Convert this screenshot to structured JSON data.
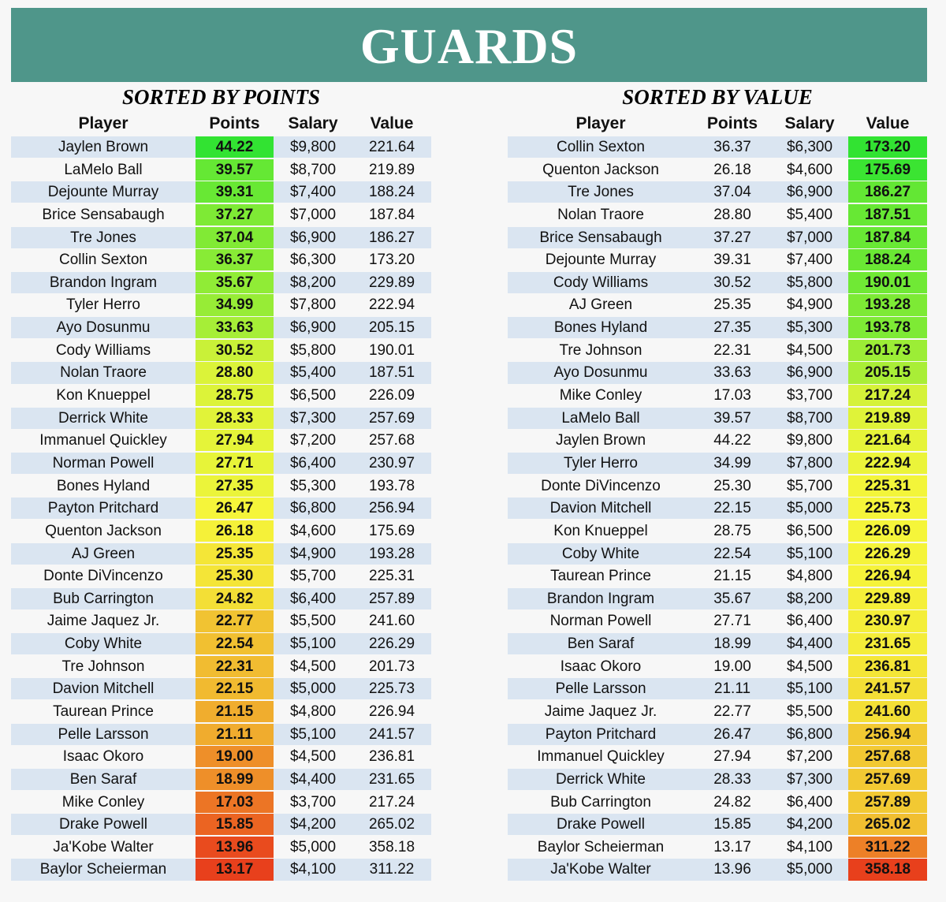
{
  "header": {
    "title": "GUARDS"
  },
  "tables": [
    {
      "subtitle": "SORTED BY POINTS",
      "columns": [
        "Player",
        "Points",
        "Salary",
        "Value"
      ],
      "heat_column": 1,
      "heat_colors": [
        "#e8401c",
        "#f5f53a",
        "#32e332"
      ],
      "rows": [
        [
          "Jaylen Brown",
          "44.22",
          "$9,800",
          "221.64"
        ],
        [
          "LaMelo Ball",
          "39.57",
          "$8,700",
          "219.89"
        ],
        [
          "Dejounte Murray",
          "39.31",
          "$7,400",
          "188.24"
        ],
        [
          "Brice Sensabaugh",
          "37.27",
          "$7,000",
          "187.84"
        ],
        [
          "Tre Jones",
          "37.04",
          "$6,900",
          "186.27"
        ],
        [
          "Collin Sexton",
          "36.37",
          "$6,300",
          "173.20"
        ],
        [
          "Brandon Ingram",
          "35.67",
          "$8,200",
          "229.89"
        ],
        [
          "Tyler Herro",
          "34.99",
          "$7,800",
          "222.94"
        ],
        [
          "Ayo Dosunmu",
          "33.63",
          "$6,900",
          "205.15"
        ],
        [
          "Cody Williams",
          "30.52",
          "$5,800",
          "190.01"
        ],
        [
          "Nolan Traore",
          "28.80",
          "$5,400",
          "187.51"
        ],
        [
          "Kon Knueppel",
          "28.75",
          "$6,500",
          "226.09"
        ],
        [
          "Derrick White",
          "28.33",
          "$7,300",
          "257.69"
        ],
        [
          "Immanuel Quickley",
          "27.94",
          "$7,200",
          "257.68"
        ],
        [
          "Norman Powell",
          "27.71",
          "$6,400",
          "230.97"
        ],
        [
          "Bones Hyland",
          "27.35",
          "$5,300",
          "193.78"
        ],
        [
          "Payton Pritchard",
          "26.47",
          "$6,800",
          "256.94"
        ],
        [
          "Quenton Jackson",
          "26.18",
          "$4,600",
          "175.69"
        ],
        [
          "AJ Green",
          "25.35",
          "$4,900",
          "193.28"
        ],
        [
          "Donte DiVincenzo",
          "25.30",
          "$5,700",
          "225.31"
        ],
        [
          "Bub Carrington",
          "24.82",
          "$6,400",
          "257.89"
        ],
        [
          "Jaime Jaquez Jr.",
          "22.77",
          "$5,500",
          "241.60"
        ],
        [
          "Coby White",
          "22.54",
          "$5,100",
          "226.29"
        ],
        [
          "Tre Johnson",
          "22.31",
          "$4,500",
          "201.73"
        ],
        [
          "Davion Mitchell",
          "22.15",
          "$5,000",
          "225.73"
        ],
        [
          "Taurean Prince",
          "21.15",
          "$4,800",
          "226.94"
        ],
        [
          "Pelle Larsson",
          "21.11",
          "$5,100",
          "241.57"
        ],
        [
          "Isaac Okoro",
          "19.00",
          "$4,500",
          "236.81"
        ],
        [
          "Ben Saraf",
          "18.99",
          "$4,400",
          "231.65"
        ],
        [
          "Mike Conley",
          "17.03",
          "$3,700",
          "217.24"
        ],
        [
          "Drake Powell",
          "15.85",
          "$4,200",
          "265.02"
        ],
        [
          "Ja'Kobe Walter",
          "13.96",
          "$5,000",
          "358.18"
        ],
        [
          "Baylor Scheierman",
          "13.17",
          "$4,100",
          "311.22"
        ]
      ]
    },
    {
      "subtitle": "SORTED BY VALUE",
      "columns": [
        "Player",
        "Points",
        "Salary",
        "Value"
      ],
      "heat_column": 3,
      "heat_colors": [
        "#32e332",
        "#f5f53a",
        "#e8401c"
      ],
      "rows": [
        [
          "Collin Sexton",
          "36.37",
          "$6,300",
          "173.20"
        ],
        [
          "Quenton Jackson",
          "26.18",
          "$4,600",
          "175.69"
        ],
        [
          "Tre Jones",
          "37.04",
          "$6,900",
          "186.27"
        ],
        [
          "Nolan Traore",
          "28.80",
          "$5,400",
          "187.51"
        ],
        [
          "Brice Sensabaugh",
          "37.27",
          "$7,000",
          "187.84"
        ],
        [
          "Dejounte Murray",
          "39.31",
          "$7,400",
          "188.24"
        ],
        [
          "Cody Williams",
          "30.52",
          "$5,800",
          "190.01"
        ],
        [
          "AJ Green",
          "25.35",
          "$4,900",
          "193.28"
        ],
        [
          "Bones Hyland",
          "27.35",
          "$5,300",
          "193.78"
        ],
        [
          "Tre Johnson",
          "22.31",
          "$4,500",
          "201.73"
        ],
        [
          "Ayo Dosunmu",
          "33.63",
          "$6,900",
          "205.15"
        ],
        [
          "Mike Conley",
          "17.03",
          "$3,700",
          "217.24"
        ],
        [
          "LaMelo Ball",
          "39.57",
          "$8,700",
          "219.89"
        ],
        [
          "Jaylen Brown",
          "44.22",
          "$9,800",
          "221.64"
        ],
        [
          "Tyler Herro",
          "34.99",
          "$7,800",
          "222.94"
        ],
        [
          "Donte DiVincenzo",
          "25.30",
          "$5,700",
          "225.31"
        ],
        [
          "Davion Mitchell",
          "22.15",
          "$5,000",
          "225.73"
        ],
        [
          "Kon Knueppel",
          "28.75",
          "$6,500",
          "226.09"
        ],
        [
          "Coby White",
          "22.54",
          "$5,100",
          "226.29"
        ],
        [
          "Taurean Prince",
          "21.15",
          "$4,800",
          "226.94"
        ],
        [
          "Brandon Ingram",
          "35.67",
          "$8,200",
          "229.89"
        ],
        [
          "Norman Powell",
          "27.71",
          "$6,400",
          "230.97"
        ],
        [
          "Ben Saraf",
          "18.99",
          "$4,400",
          "231.65"
        ],
        [
          "Isaac Okoro",
          "19.00",
          "$4,500",
          "236.81"
        ],
        [
          "Pelle Larsson",
          "21.11",
          "$5,100",
          "241.57"
        ],
        [
          "Jaime Jaquez Jr.",
          "22.77",
          "$5,500",
          "241.60"
        ],
        [
          "Payton Pritchard",
          "26.47",
          "$6,800",
          "256.94"
        ],
        [
          "Immanuel Quickley",
          "27.94",
          "$7,200",
          "257.68"
        ],
        [
          "Derrick White",
          "28.33",
          "$7,300",
          "257.69"
        ],
        [
          "Bub Carrington",
          "24.82",
          "$6,400",
          "257.89"
        ],
        [
          "Drake Powell",
          "15.85",
          "$4,200",
          "265.02"
        ],
        [
          "Baylor Scheierman",
          "13.17",
          "$4,100",
          "311.22"
        ],
        [
          "Ja'Kobe Walter",
          "13.96",
          "$5,000",
          "358.18"
        ]
      ]
    }
  ]
}
